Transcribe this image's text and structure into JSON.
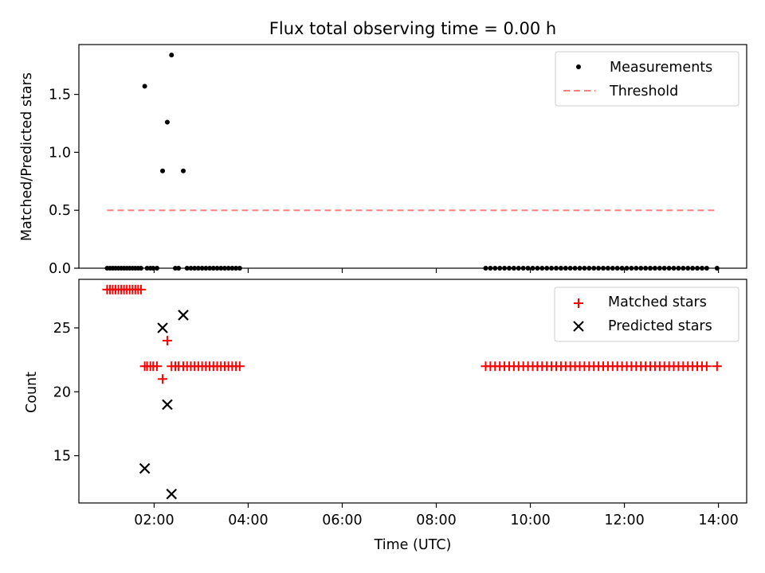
{
  "chart_data": [
    {
      "type": "scatter",
      "title": "Flux total observing time = 0.00 h",
      "xlabel": "",
      "ylabel": "Matched/Predicted stars",
      "xlim": [
        0.4,
        14.6
      ],
      "ylim": [
        0,
        1.93
      ],
      "yticks": [
        0.0,
        0.5,
        1.0,
        1.5
      ],
      "ytick_labels": [
        "0.0",
        "0.5",
        "1.0",
        "1.5"
      ],
      "grid": false,
      "legend_placement": "top-right",
      "series": [
        {
          "name": "Measurements",
          "kind": "scatter",
          "marker": "dot",
          "color": "#000000",
          "points": [
            [
              1.0,
              0
            ],
            [
              1.06,
              0
            ],
            [
              1.12,
              0
            ],
            [
              1.18,
              0
            ],
            [
              1.24,
              0
            ],
            [
              1.3,
              0
            ],
            [
              1.36,
              0
            ],
            [
              1.42,
              0
            ],
            [
              1.48,
              0
            ],
            [
              1.54,
              0
            ],
            [
              1.6,
              0
            ],
            [
              1.66,
              0
            ],
            [
              1.72,
              0
            ],
            [
              1.8,
              1.57
            ],
            [
              1.85,
              0
            ],
            [
              1.92,
              0
            ],
            [
              1.98,
              0
            ],
            [
              2.06,
              0
            ],
            [
              2.18,
              0.84
            ],
            [
              2.28,
              1.26
            ],
            [
              2.37,
              1.84
            ],
            [
              2.45,
              0
            ],
            [
              2.52,
              0
            ],
            [
              2.62,
              0.84
            ],
            [
              2.7,
              0
            ],
            [
              2.78,
              0
            ],
            [
              2.86,
              0
            ],
            [
              2.94,
              0
            ],
            [
              3.02,
              0
            ],
            [
              3.1,
              0
            ],
            [
              3.18,
              0
            ],
            [
              3.26,
              0
            ],
            [
              3.34,
              0
            ],
            [
              3.42,
              0
            ],
            [
              3.5,
              0
            ],
            [
              3.58,
              0
            ],
            [
              3.66,
              0
            ],
            [
              3.74,
              0
            ],
            [
              3.82,
              0
            ],
            [
              9.05,
              0
            ],
            [
              9.15,
              0
            ],
            [
              9.25,
              0
            ],
            [
              9.35,
              0
            ],
            [
              9.45,
              0
            ],
            [
              9.55,
              0
            ],
            [
              9.65,
              0
            ],
            [
              9.75,
              0
            ],
            [
              9.85,
              0
            ],
            [
              9.95,
              0
            ],
            [
              10.05,
              0
            ],
            [
              10.15,
              0
            ],
            [
              10.25,
              0
            ],
            [
              10.35,
              0
            ],
            [
              10.45,
              0
            ],
            [
              10.55,
              0
            ],
            [
              10.65,
              0
            ],
            [
              10.75,
              0
            ],
            [
              10.85,
              0
            ],
            [
              10.95,
              0
            ],
            [
              11.05,
              0
            ],
            [
              11.15,
              0
            ],
            [
              11.25,
              0
            ],
            [
              11.35,
              0
            ],
            [
              11.45,
              0
            ],
            [
              11.55,
              0
            ],
            [
              11.65,
              0
            ],
            [
              11.75,
              0
            ],
            [
              11.85,
              0
            ],
            [
              11.95,
              0
            ],
            [
              12.05,
              0
            ],
            [
              12.15,
              0
            ],
            [
              12.25,
              0
            ],
            [
              12.35,
              0
            ],
            [
              12.45,
              0
            ],
            [
              12.55,
              0
            ],
            [
              12.65,
              0
            ],
            [
              12.75,
              0
            ],
            [
              12.85,
              0
            ],
            [
              12.95,
              0
            ],
            [
              13.05,
              0
            ],
            [
              13.15,
              0
            ],
            [
              13.25,
              0
            ],
            [
              13.35,
              0
            ],
            [
              13.45,
              0
            ],
            [
              13.55,
              0
            ],
            [
              13.65,
              0
            ],
            [
              13.75,
              0
            ],
            [
              13.97,
              0
            ]
          ]
        },
        {
          "name": "Threshold",
          "kind": "line",
          "linestyle": "dashed",
          "color": "#ff8080",
          "points": [
            [
              1.0,
              0.5
            ],
            [
              13.97,
              0.5
            ]
          ]
        }
      ]
    },
    {
      "type": "scatter",
      "title": "",
      "xlabel": "Time (UTC)",
      "ylabel": "Count",
      "xlim": [
        0.4,
        14.6
      ],
      "ylim": [
        11.3,
        28.8
      ],
      "yticks": [
        15,
        20,
        25
      ],
      "ytick_labels": [
        "15",
        "20",
        "25"
      ],
      "xticks": [
        2,
        4,
        6,
        8,
        10,
        12,
        14
      ],
      "xtick_labels": [
        "02:00",
        "04:00",
        "06:00",
        "08:00",
        "10:00",
        "12:00",
        "14:00"
      ],
      "grid": false,
      "legend_placement": "top-right",
      "series": [
        {
          "name": "Matched stars",
          "kind": "scatter",
          "marker": "plus",
          "color": "#ff0000",
          "points": [
            [
              1.0,
              28
            ],
            [
              1.06,
              28
            ],
            [
              1.12,
              28
            ],
            [
              1.18,
              28
            ],
            [
              1.24,
              28
            ],
            [
              1.3,
              28
            ],
            [
              1.36,
              28
            ],
            [
              1.42,
              28
            ],
            [
              1.48,
              28
            ],
            [
              1.54,
              28
            ],
            [
              1.6,
              28
            ],
            [
              1.66,
              28
            ],
            [
              1.72,
              28
            ],
            [
              1.8,
              22
            ],
            [
              1.85,
              22
            ],
            [
              1.92,
              22
            ],
            [
              1.98,
              22
            ],
            [
              2.06,
              22
            ],
            [
              2.18,
              21
            ],
            [
              2.28,
              24
            ],
            [
              2.37,
              22
            ],
            [
              2.45,
              22
            ],
            [
              2.52,
              22
            ],
            [
              2.62,
              22
            ],
            [
              2.7,
              22
            ],
            [
              2.78,
              22
            ],
            [
              2.86,
              22
            ],
            [
              2.94,
              22
            ],
            [
              3.02,
              22
            ],
            [
              3.1,
              22
            ],
            [
              3.18,
              22
            ],
            [
              3.26,
              22
            ],
            [
              3.34,
              22
            ],
            [
              3.42,
              22
            ],
            [
              3.5,
              22
            ],
            [
              3.58,
              22
            ],
            [
              3.66,
              22
            ],
            [
              3.74,
              22
            ],
            [
              3.82,
              22
            ],
            [
              9.05,
              22
            ],
            [
              9.15,
              22
            ],
            [
              9.25,
              22
            ],
            [
              9.35,
              22
            ],
            [
              9.45,
              22
            ],
            [
              9.55,
              22
            ],
            [
              9.65,
              22
            ],
            [
              9.75,
              22
            ],
            [
              9.85,
              22
            ],
            [
              9.95,
              22
            ],
            [
              10.05,
              22
            ],
            [
              10.15,
              22
            ],
            [
              10.25,
              22
            ],
            [
              10.35,
              22
            ],
            [
              10.45,
              22
            ],
            [
              10.55,
              22
            ],
            [
              10.65,
              22
            ],
            [
              10.75,
              22
            ],
            [
              10.85,
              22
            ],
            [
              10.95,
              22
            ],
            [
              11.05,
              22
            ],
            [
              11.15,
              22
            ],
            [
              11.25,
              22
            ],
            [
              11.35,
              22
            ],
            [
              11.45,
              22
            ],
            [
              11.55,
              22
            ],
            [
              11.65,
              22
            ],
            [
              11.75,
              22
            ],
            [
              11.85,
              22
            ],
            [
              11.95,
              22
            ],
            [
              12.05,
              22
            ],
            [
              12.15,
              22
            ],
            [
              12.25,
              22
            ],
            [
              12.35,
              22
            ],
            [
              12.45,
              22
            ],
            [
              12.55,
              22
            ],
            [
              12.65,
              22
            ],
            [
              12.75,
              22
            ],
            [
              12.85,
              22
            ],
            [
              12.95,
              22
            ],
            [
              13.05,
              22
            ],
            [
              13.15,
              22
            ],
            [
              13.25,
              22
            ],
            [
              13.35,
              22
            ],
            [
              13.45,
              22
            ],
            [
              13.55,
              22
            ],
            [
              13.65,
              22
            ],
            [
              13.75,
              22
            ],
            [
              13.97,
              22
            ]
          ]
        },
        {
          "name": "Predicted stars",
          "kind": "scatter",
          "marker": "x",
          "color": "#000000",
          "points": [
            [
              1.8,
              14
            ],
            [
              2.18,
              25
            ],
            [
              2.28,
              19
            ],
            [
              2.37,
              12
            ],
            [
              2.62,
              26
            ]
          ]
        }
      ]
    }
  ]
}
